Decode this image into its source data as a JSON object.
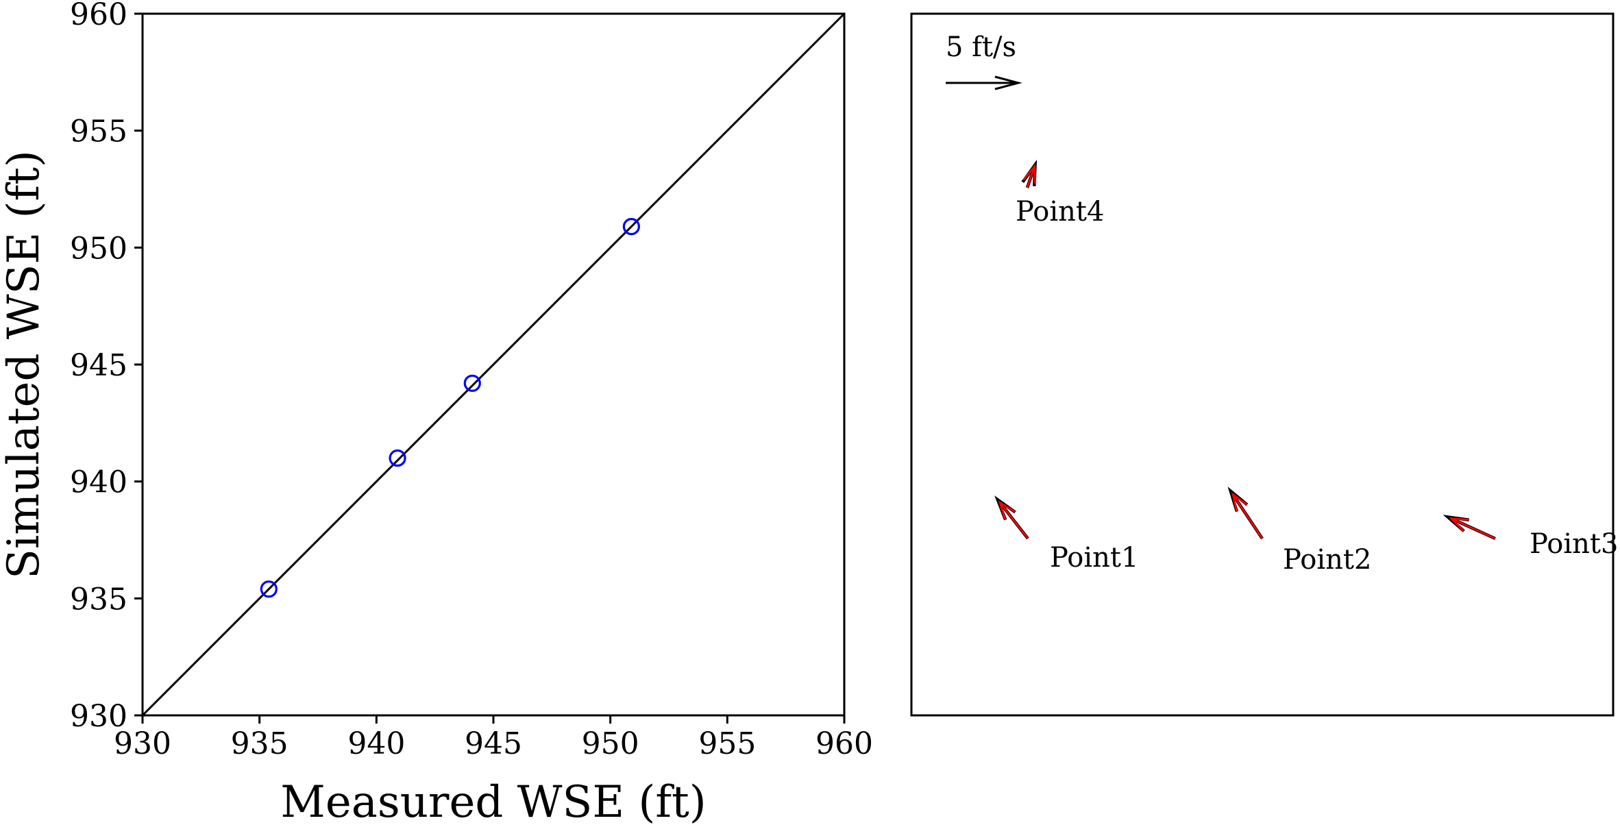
{
  "chart_data": [
    {
      "type": "scatter",
      "xlabel": "Measured WSE (ft)",
      "ylabel": "Simulated WSE (ft)",
      "xlim": [
        930,
        960
      ],
      "ylim": [
        930,
        960
      ],
      "xticks": [
        "930",
        "935",
        "940",
        "945",
        "950",
        "955",
        "960"
      ],
      "yticks": [
        "930",
        "935",
        "940",
        "945",
        "950",
        "955",
        "960"
      ],
      "grid": false,
      "reference_line": "1:1",
      "series": [
        {
          "marker": "open-circle",
          "color": "#0000ff",
          "x": [
            935.4,
            940.9,
            944.1,
            950.9
          ],
          "y": [
            935.4,
            941.0,
            944.2,
            950.9
          ]
        }
      ],
      "line_color": "#000000"
    },
    {
      "type": "quiver",
      "scale_label": "5 ft/s",
      "scale_value": 5,
      "measured_color": "#ff0000",
      "simulated_color": "#000000",
      "points": [
        {
          "label": "Point1",
          "u": -2.1,
          "v": 2.7
        },
        {
          "label": "Point2",
          "u": -2.2,
          "v": 3.3
        },
        {
          "label": "Point3",
          "u": -3.3,
          "v": 1.5
        },
        {
          "label": "Point4",
          "u": 0.55,
          "v": 1.6
        }
      ]
    }
  ]
}
